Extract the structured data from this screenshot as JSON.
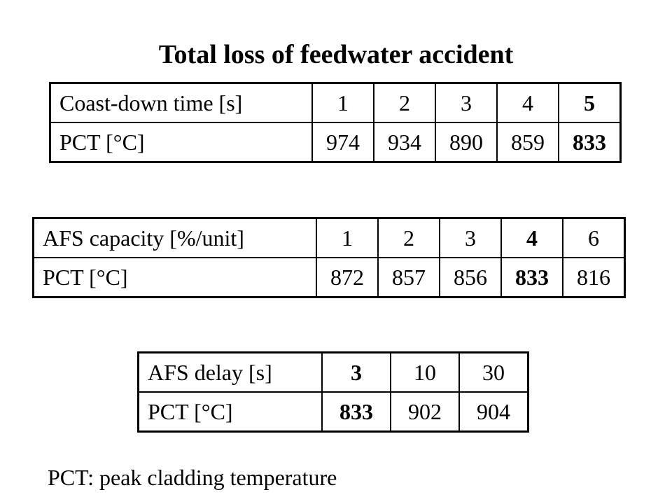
{
  "title": "Total loss of feedwater accident",
  "tables": [
    {
      "header_label": "Coast-down time [s]",
      "row_label": "PCT [°C]",
      "params": [
        "1",
        "2",
        "3",
        "4",
        "5"
      ],
      "pct": [
        "974",
        "934",
        "890",
        "859",
        "833"
      ],
      "bold_index": 4
    },
    {
      "header_label": "AFS capacity [%/unit]",
      "row_label": "PCT [°C]",
      "params": [
        "1",
        "2",
        "3",
        "4",
        "6"
      ],
      "pct": [
        "872",
        "857",
        "856",
        "833",
        "816"
      ],
      "bold_index": 3
    },
    {
      "header_label": "AFS delay [s]",
      "row_label": "PCT [°C]",
      "params": [
        "3",
        "10",
        "30"
      ],
      "pct": [
        "833",
        "902",
        "904"
      ],
      "bold_index": 0
    }
  ],
  "footnote": "PCT: peak cladding temperature"
}
